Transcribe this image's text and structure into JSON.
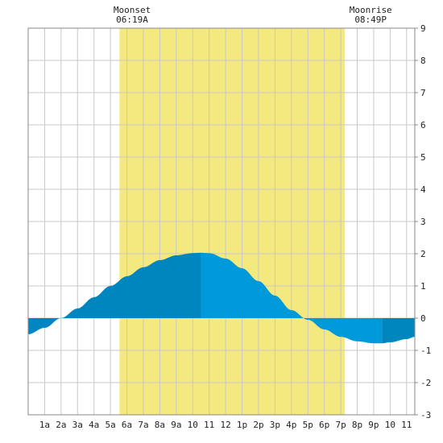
{
  "chart_data": {
    "type": "area",
    "title": "",
    "xlabel": "",
    "ylabel": "",
    "x_unit": "hour of day",
    "xlim": [
      0,
      23.5
    ],
    "ylim": [
      -3,
      9
    ],
    "y_ticks": [
      9,
      8,
      7,
      6,
      5,
      4,
      3,
      2,
      1,
      0,
      -1,
      -2,
      -3
    ],
    "x_tick_labels": [
      "1a",
      "2a",
      "3a",
      "4a",
      "5a",
      "6a",
      "7a",
      "8a",
      "9a",
      "10",
      "11",
      "12",
      "1p",
      "2p",
      "3p",
      "4p",
      "5p",
      "6p",
      "7p",
      "8p",
      "9p",
      "10",
      "11"
    ],
    "grid": true,
    "daylight_band": {
      "start_hour": 5.55,
      "end_hour": 19.25,
      "color": "#f3e97f"
    },
    "moonset": {
      "label": "Moonset",
      "time": "06:19A",
      "hour": 6.317
    },
    "moonrise": {
      "label": "Moonrise",
      "time": "08:49P",
      "hour": 20.817
    },
    "tide_series": {
      "name": "",
      "x": [
        0,
        1,
        2,
        3,
        4,
        5,
        6,
        7,
        8,
        9,
        10,
        10.5,
        11,
        12,
        13,
        14,
        15,
        16,
        17,
        18,
        19,
        20,
        21,
        21.5,
        22,
        23,
        23.5
      ],
      "y": [
        -0.5,
        -0.3,
        0.0,
        0.3,
        0.65,
        1.0,
        1.3,
        1.58,
        1.8,
        1.95,
        2.02,
        2.03,
        2.02,
        1.85,
        1.55,
        1.15,
        0.7,
        0.25,
        -0.05,
        -0.35,
        -0.58,
        -0.72,
        -0.78,
        -0.78,
        -0.75,
        -0.65,
        -0.58
      ]
    },
    "segments": [
      {
        "from": 0,
        "to": 2,
        "color": "#0286c1"
      },
      {
        "from": 2,
        "to": 10.5,
        "color": "#0086bf"
      },
      {
        "from": 10.5,
        "to": 17.3,
        "color": "#0099da"
      },
      {
        "from": 17.3,
        "to": 21.5,
        "color": "#0099da"
      },
      {
        "from": 21.5,
        "to": 23.5,
        "color": "#0086bf"
      }
    ],
    "colors": {
      "grid": "#c8c8c8",
      "frame": "#888888",
      "zero_line": "#777777"
    }
  }
}
